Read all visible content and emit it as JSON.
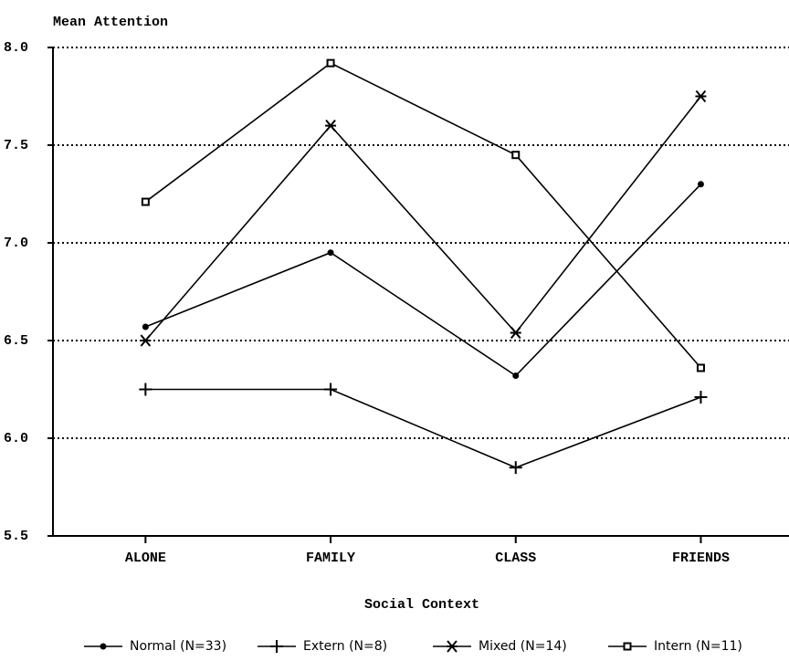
{
  "chart_data": {
    "type": "line",
    "title": "Mean Attention",
    "x_label": "Social Context",
    "categories": [
      "ALONE",
      "FAMILY",
      "CLASS",
      "FRIENDS"
    ],
    "series": [
      {
        "name": "Normal (N=33)",
        "color": "#000000",
        "marker": "dot",
        "values": [
          6.57,
          6.95,
          6.32,
          7.3
        ]
      },
      {
        "name": "Extern (N=8)",
        "color": "#000000",
        "marker": "plus",
        "values": [
          6.25,
          6.25,
          5.85,
          6.21
        ]
      },
      {
        "name": "Mixed (N=14)",
        "color": "#000000",
        "marker": "asterisk",
        "values": [
          6.5,
          7.6,
          6.54,
          7.75
        ]
      },
      {
        "name": "Intern (N=11)",
        "color": "#000000",
        "marker": "square",
        "values": [
          7.21,
          7.92,
          7.45,
          6.36
        ]
      }
    ],
    "ylim": [
      5.5,
      8
    ],
    "yticks": [
      5.5,
      {
        "value": 6,
        "label": "6.0"
      },
      6.5,
      {
        "value": 7,
        "label": "7.0"
      },
      7.5,
      {
        "value": 8,
        "label": "8.0"
      }
    ],
    "grid": true,
    "legend": "bottom"
  }
}
